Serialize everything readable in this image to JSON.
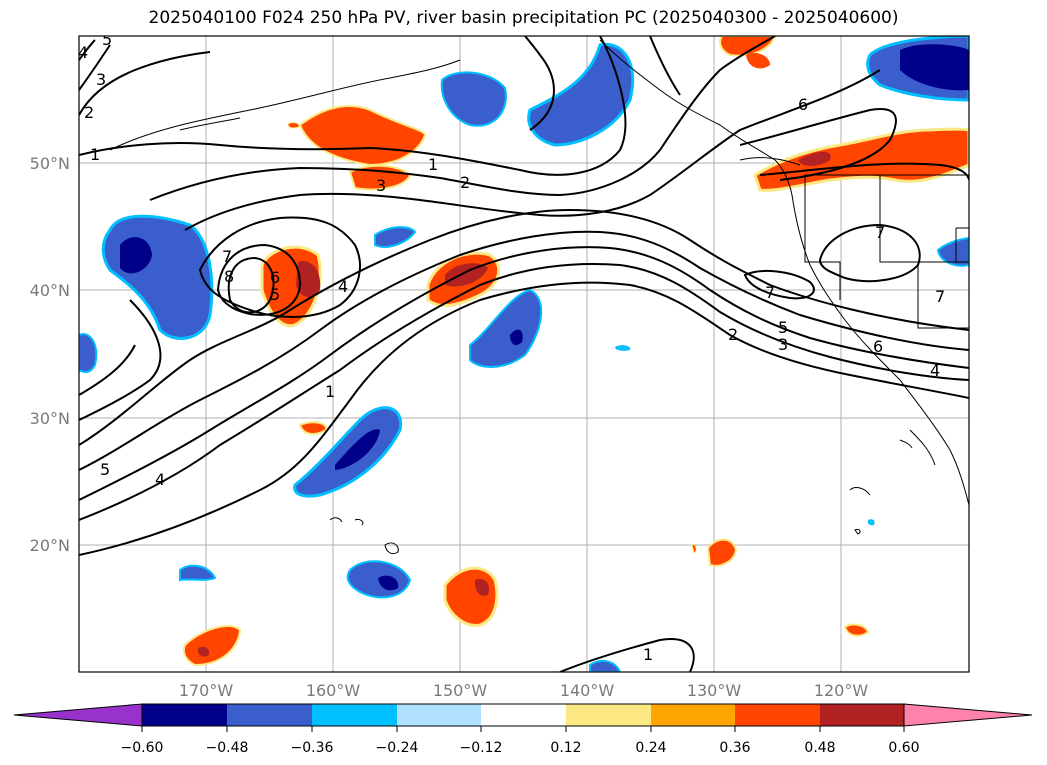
{
  "title": "2025040100 F024 250 hPa PV, river basin precipitation PC (2025040300 - 2025040600)",
  "lat_labels": [
    "50°N",
    "40°N",
    "30°N",
    "20°N"
  ],
  "lon_labels": [
    "170°W",
    "160°W",
    "150°W",
    "140°W",
    "130°W",
    "120°W"
  ],
  "colorbar": {
    "ticks": [
      "−0.60",
      "−0.48",
      "−0.36",
      "−0.24",
      "−0.12",
      "0.12",
      "0.24",
      "0.36",
      "0.48",
      "0.60"
    ],
    "colors": [
      "#9932cc",
      "#00008b",
      "#3a5fcd",
      "#00bfff",
      "#b0e2ff",
      "#ffffff",
      "#fce883",
      "#ffa500",
      "#ff4500",
      "#b22222",
      "#ff82ab"
    ]
  },
  "contour_labels": [
    "5",
    "4",
    "3",
    "2",
    "1",
    "1",
    "2",
    "3",
    "7",
    "8",
    "6",
    "5",
    "4",
    "1",
    "5",
    "4",
    "6",
    "7",
    "7",
    "5",
    "3",
    "2",
    "6",
    "4",
    "7",
    "1"
  ]
}
